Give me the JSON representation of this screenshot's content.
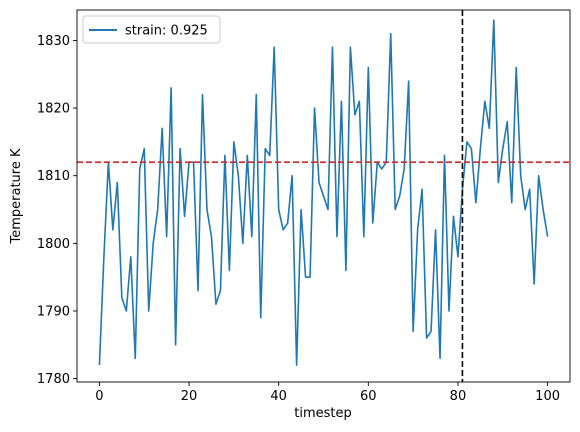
{
  "chart_data": {
    "type": "line",
    "title": "",
    "xlabel": "timestep",
    "ylabel": "Temperature K",
    "xlim": [
      -5,
      105
    ],
    "ylim": [
      1779.5,
      1834.5
    ],
    "xticks": [
      0,
      20,
      40,
      60,
      80,
      100
    ],
    "yticks": [
      1780,
      1790,
      1800,
      1810,
      1820,
      1830
    ],
    "grid": false,
    "legend_position": "top-left",
    "series": [
      {
        "name": "strain: 0.925",
        "color": "#1f77b4",
        "x": [
          0,
          1,
          2,
          3,
          4,
          5,
          6,
          7,
          8,
          9,
          10,
          11,
          12,
          13,
          14,
          15,
          16,
          17,
          18,
          19,
          20,
          21,
          22,
          23,
          24,
          25,
          26,
          27,
          28,
          29,
          30,
          31,
          32,
          33,
          34,
          35,
          36,
          37,
          38,
          39,
          40,
          41,
          42,
          43,
          44,
          45,
          46,
          47,
          48,
          49,
          50,
          51,
          52,
          53,
          54,
          55,
          56,
          57,
          58,
          59,
          60,
          61,
          62,
          63,
          64,
          65,
          66,
          67,
          68,
          69,
          70,
          71,
          72,
          73,
          74,
          75,
          76,
          77,
          78,
          79,
          80,
          81,
          82,
          83,
          84,
          85,
          86,
          87,
          88,
          89,
          90,
          91,
          92,
          93,
          94,
          95,
          96,
          97,
          98,
          99,
          100
        ],
        "y": [
          1782,
          1798,
          1812,
          1802,
          1809,
          1792,
          1790,
          1798,
          1783,
          1811,
          1814,
          1790,
          1800,
          1805,
          1817,
          1801,
          1823,
          1785,
          1814,
          1804,
          1812,
          1812,
          1793,
          1822,
          1805,
          1801,
          1791,
          1793,
          1813,
          1796,
          1815,
          1810,
          1800,
          1813,
          1801,
          1822,
          1789,
          1814,
          1813,
          1829,
          1805,
          1802,
          1803,
          1810,
          1782,
          1805,
          1795,
          1795,
          1820,
          1809,
          1807,
          1805,
          1829,
          1801,
          1821,
          1796,
          1829,
          1819,
          1821,
          1801,
          1826,
          1803,
          1812,
          1811,
          1812,
          1831,
          1805,
          1807,
          1811,
          1824,
          1787,
          1802,
          1808,
          1786,
          1787,
          1802,
          1783,
          1813,
          1790,
          1804,
          1798,
          1808,
          1815,
          1814,
          1806,
          1814,
          1821,
          1817,
          1833,
          1809,
          1814,
          1818,
          1806,
          1826,
          1810,
          1805,
          1808,
          1794,
          1810,
          1805,
          1801
        ]
      }
    ],
    "reference_lines": [
      {
        "orientation": "horizontal",
        "value": 1812,
        "color": "#d62728",
        "style": "dashed"
      },
      {
        "orientation": "vertical",
        "value": 81,
        "color": "#000000",
        "style": "dashed"
      }
    ]
  }
}
